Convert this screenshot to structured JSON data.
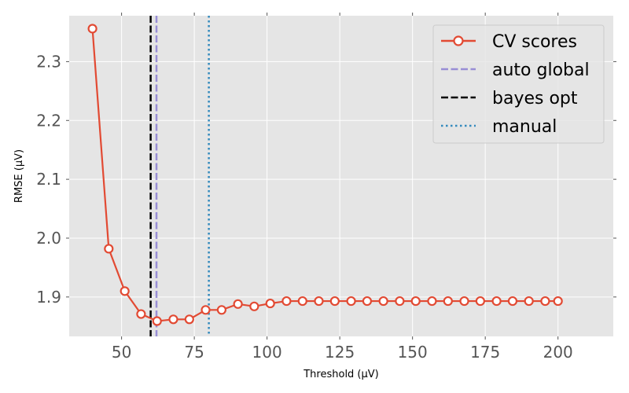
{
  "chart_data": {
    "type": "line",
    "xlabel": "Threshold (μV)",
    "ylabel": "RMSE (μV)",
    "xlim": [
      32,
      219
    ],
    "ylim": [
      1.833,
      2.378
    ],
    "grid": true,
    "legend_position": "top-right",
    "x_ticks": [
      50,
      75,
      100,
      125,
      150,
      175,
      200
    ],
    "y_ticks": [
      1.9,
      2.0,
      2.1,
      2.2,
      2.3
    ],
    "x_tick_labels": [
      "50",
      "75",
      "100",
      "125",
      "150",
      "175",
      "200"
    ],
    "y_tick_labels": [
      "1.9",
      "2.0",
      "2.1",
      "2.2",
      "2.3"
    ],
    "series": [
      {
        "name": "CV scores",
        "color": "#e24a33",
        "marker": "open-circle",
        "x": [
          40,
          45.6,
          51.1,
          56.7,
          62.2,
          67.8,
          73.3,
          78.9,
          84.4,
          90,
          95.6,
          101.1,
          106.7,
          112.2,
          117.8,
          123.3,
          128.9,
          134.4,
          140,
          145.6,
          151.1,
          156.7,
          162.2,
          167.8,
          173.3,
          178.9,
          184.4,
          190,
          195.6,
          200
        ],
        "y": [
          2.356,
          1.982,
          1.91,
          1.871,
          1.859,
          1.862,
          1.862,
          1.878,
          1.878,
          1.888,
          1.884,
          1.889,
          1.893,
          1.893,
          1.893,
          1.893,
          1.893,
          1.893,
          1.893,
          1.893,
          1.893,
          1.893,
          1.893,
          1.893,
          1.893,
          1.893,
          1.893,
          1.893,
          1.893,
          1.893
        ]
      }
    ],
    "vlines": [
      {
        "name": "auto global",
        "x": 62,
        "color": "#988ed5",
        "style": "dashed"
      },
      {
        "name": "bayes opt",
        "x": 60,
        "color": "#000000",
        "style": "dashed"
      },
      {
        "name": "manual",
        "x": 80,
        "color": "#348abd",
        "style": "dotted"
      }
    ]
  }
}
